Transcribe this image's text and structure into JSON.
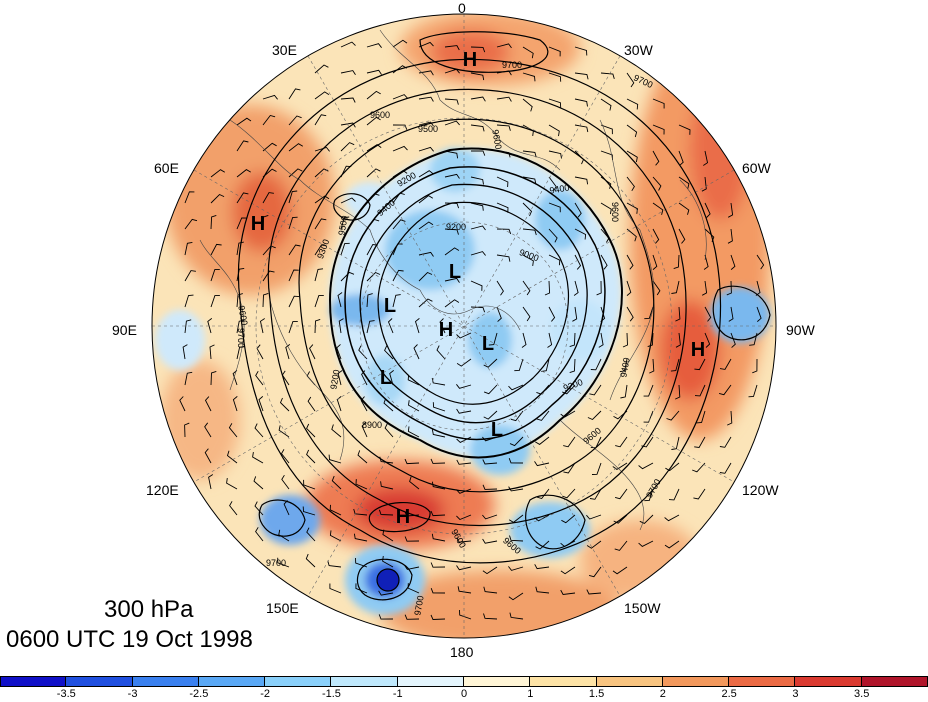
{
  "title": "300 hPa",
  "valid_time": "0600 UTC 19 Oct 1998",
  "longitude_labels": [
    {
      "text": "0",
      "deg": 0
    },
    {
      "text": "30W",
      "deg": -30
    },
    {
      "text": "60W",
      "deg": -60
    },
    {
      "text": "90W",
      "deg": -90
    },
    {
      "text": "120W",
      "deg": -120
    },
    {
      "text": "150W",
      "deg": -150
    },
    {
      "text": "180",
      "deg": 180
    },
    {
      "text": "150E",
      "deg": 150
    },
    {
      "text": "120E",
      "deg": 120
    },
    {
      "text": "90E",
      "deg": 90
    },
    {
      "text": "60E",
      "deg": 60
    },
    {
      "text": "30E",
      "deg": 30
    }
  ],
  "pressure_centers": [
    {
      "type": "H",
      "label": "H"
    },
    {
      "type": "H",
      "label": "H"
    },
    {
      "type": "H",
      "label": "H"
    },
    {
      "type": "H",
      "label": "H"
    },
    {
      "type": "H",
      "label": "H"
    },
    {
      "type": "L",
      "label": "L"
    },
    {
      "type": "L",
      "label": "L"
    },
    {
      "type": "L",
      "label": "L"
    },
    {
      "type": "L",
      "label": "L"
    },
    {
      "type": "L",
      "label": "L"
    }
  ],
  "contour_labels": [
    "9700",
    "9700",
    "9600",
    "9500",
    "9600",
    "9400",
    "9200",
    "9200",
    "9300",
    "9400",
    "9000",
    "9600",
    "9200",
    "9500",
    "9400",
    "9600",
    "9700",
    "9600",
    "9700",
    "9700",
    "9700",
    "9200",
    "8900",
    "9600",
    "9600"
  ],
  "colorbar": {
    "colors": [
      "#1010c8",
      "#2050e0",
      "#3a80ef",
      "#5aa8f5",
      "#8ad0fa",
      "#bfe8fc",
      "#e4f5fd",
      "#fff5d6",
      "#fde3a6",
      "#f8c480",
      "#f2985c",
      "#eb6a44",
      "#da3a30",
      "#b0142a"
    ],
    "ticks": [
      "-3.5",
      "-3",
      "-2.5",
      "-2",
      "-1.5",
      "-1",
      "0",
      "1",
      "1.5",
      "2",
      "2.5",
      "3",
      "3.5"
    ]
  },
  "anomaly_color_scheme": {
    "base_fill": "#fbe4b8",
    "negative_fill": "#a9d6f4",
    "positive_fill": "#f0935f"
  }
}
